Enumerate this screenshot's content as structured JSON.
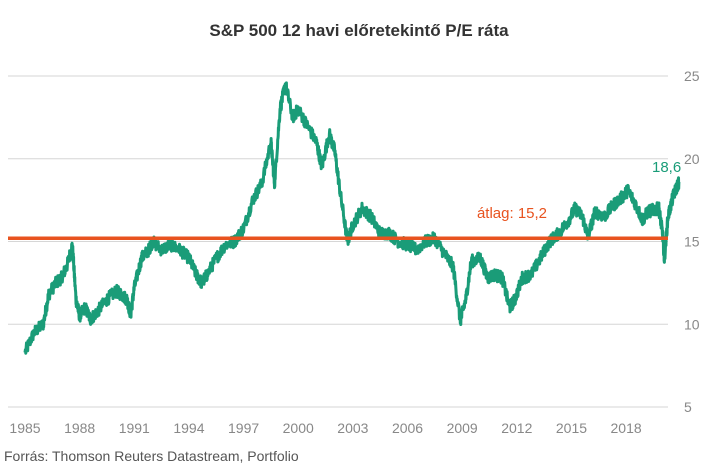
{
  "chart_data": {
    "type": "line",
    "title": "S&P 500 12 havi előretekintő P/E ráta",
    "source": "Forrás: Thomson Reuters Datastream, Portfolio",
    "xlabel": "",
    "ylabel": "",
    "xlim": [
      1985,
      2020.3
    ],
    "ylim": [
      5,
      25
    ],
    "x_ticks": [
      "1985",
      "1988",
      "1991",
      "1994",
      "1997",
      "2000",
      "2003",
      "2006",
      "2009",
      "2012",
      "2015",
      "2018"
    ],
    "y_ticks": [
      "5",
      "10",
      "15",
      "20",
      "25"
    ],
    "grid": "horizontal",
    "series": [
      {
        "color": "#1a9c78",
        "points": [
          [
            1985.0,
            8.3
          ],
          [
            1985.5,
            9.5
          ],
          [
            1986.0,
            10.0
          ],
          [
            1986.3,
            11.8
          ],
          [
            1986.7,
            12.5
          ],
          [
            1987.0,
            12.8
          ],
          [
            1987.3,
            13.5
          ],
          [
            1987.6,
            14.8
          ],
          [
            1987.8,
            11.5
          ],
          [
            1988.0,
            10.5
          ],
          [
            1988.3,
            11.0
          ],
          [
            1988.6,
            10.3
          ],
          [
            1989.0,
            10.8
          ],
          [
            1989.5,
            11.5
          ],
          [
            1990.0,
            12.0
          ],
          [
            1990.3,
            11.8
          ],
          [
            1990.6,
            11.5
          ],
          [
            1990.8,
            10.6
          ],
          [
            1991.0,
            12.2
          ],
          [
            1991.4,
            14.0
          ],
          [
            1991.8,
            14.5
          ],
          [
            1992.0,
            15.0
          ],
          [
            1992.5,
            14.5
          ],
          [
            1993.0,
            14.8
          ],
          [
            1993.5,
            14.5
          ],
          [
            1994.0,
            14.0
          ],
          [
            1994.4,
            13.0
          ],
          [
            1994.7,
            12.5
          ],
          [
            1995.0,
            13.0
          ],
          [
            1995.5,
            14.0
          ],
          [
            1996.0,
            14.8
          ],
          [
            1996.5,
            15.0
          ],
          [
            1997.0,
            15.8
          ],
          [
            1997.5,
            17.5
          ],
          [
            1998.0,
            18.5
          ],
          [
            1998.5,
            21.0
          ],
          [
            1998.7,
            18.5
          ],
          [
            1999.0,
            23.0
          ],
          [
            1999.3,
            24.5
          ],
          [
            1999.7,
            22.5
          ],
          [
            2000.0,
            23.0
          ],
          [
            2000.5,
            22.0
          ],
          [
            2001.0,
            21.0
          ],
          [
            2001.3,
            19.5
          ],
          [
            2001.7,
            21.5
          ],
          [
            2002.0,
            20.5
          ],
          [
            2002.3,
            18.0
          ],
          [
            2002.7,
            15.0
          ],
          [
            2003.0,
            16.0
          ],
          [
            2003.5,
            17.0
          ],
          [
            2004.0,
            16.5
          ],
          [
            2004.5,
            15.5
          ],
          [
            2005.0,
            15.5
          ],
          [
            2005.5,
            15.0
          ],
          [
            2006.0,
            14.8
          ],
          [
            2006.5,
            14.5
          ],
          [
            2007.0,
            15.0
          ],
          [
            2007.5,
            15.2
          ],
          [
            2008.0,
            14.3
          ],
          [
            2008.5,
            13.5
          ],
          [
            2008.9,
            10.2
          ],
          [
            2009.2,
            11.5
          ],
          [
            2009.5,
            13.8
          ],
          [
            2010.0,
            14.0
          ],
          [
            2010.4,
            12.8
          ],
          [
            2010.8,
            13.0
          ],
          [
            2011.2,
            12.8
          ],
          [
            2011.6,
            11.0
          ],
          [
            2011.9,
            11.5
          ],
          [
            2012.3,
            12.8
          ],
          [
            2012.8,
            13.0
          ],
          [
            2013.3,
            14.0
          ],
          [
            2013.8,
            15.0
          ],
          [
            2014.3,
            15.5
          ],
          [
            2014.8,
            16.2
          ],
          [
            2015.2,
            17.0
          ],
          [
            2015.6,
            16.5
          ],
          [
            2015.9,
            15.3
          ],
          [
            2016.3,
            16.8
          ],
          [
            2016.8,
            16.5
          ],
          [
            2017.3,
            17.2
          ],
          [
            2017.8,
            17.7
          ],
          [
            2018.1,
            18.1
          ],
          [
            2018.5,
            17.3
          ],
          [
            2018.9,
            16.3
          ],
          [
            2019.2,
            16.8
          ],
          [
            2019.5,
            16.9
          ],
          [
            2019.8,
            17.0
          ],
          [
            2020.0,
            15.5
          ],
          [
            2020.1,
            13.9
          ],
          [
            2020.3,
            16.5
          ],
          [
            2020.6,
            17.8
          ],
          [
            2020.9,
            18.6
          ]
        ]
      }
    ],
    "reference_line": {
      "value": 15.2,
      "label": "átlag: 15,2",
      "color": "#e8531f"
    },
    "end_label": {
      "value": 18.6,
      "text": "18,6",
      "color": "#1a9c78"
    }
  }
}
